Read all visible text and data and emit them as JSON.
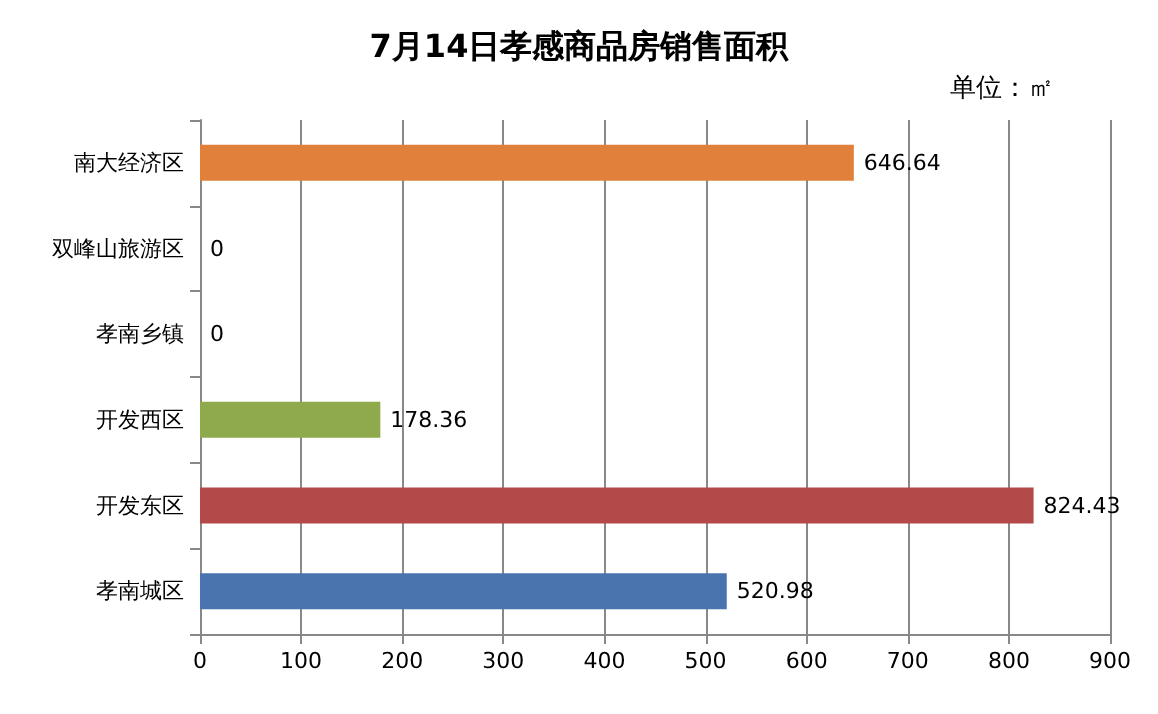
{
  "chart_data": {
    "type": "bar",
    "orientation": "horizontal",
    "title": "7月14日孝感商品房销售面积",
    "annotations": [
      "单位：㎡"
    ],
    "categories": [
      "南大经济区",
      "双峰山旅游区",
      "孝南乡镇",
      "开发西区",
      "开发东区",
      "孝南城区"
    ],
    "values": [
      646.64,
      0,
      0,
      178.36,
      824.43,
      520.98
    ],
    "colors": [
      "#e0803a",
      "#4f81bd",
      "#4f81bd",
      "#8eaa4c",
      "#b4494a",
      "#4a74ad"
    ],
    "data_labels": true,
    "xlim": [
      0,
      900
    ],
    "xticks": [
      0,
      100,
      200,
      300,
      400,
      500,
      600,
      700,
      800,
      900
    ],
    "grid": "x"
  }
}
